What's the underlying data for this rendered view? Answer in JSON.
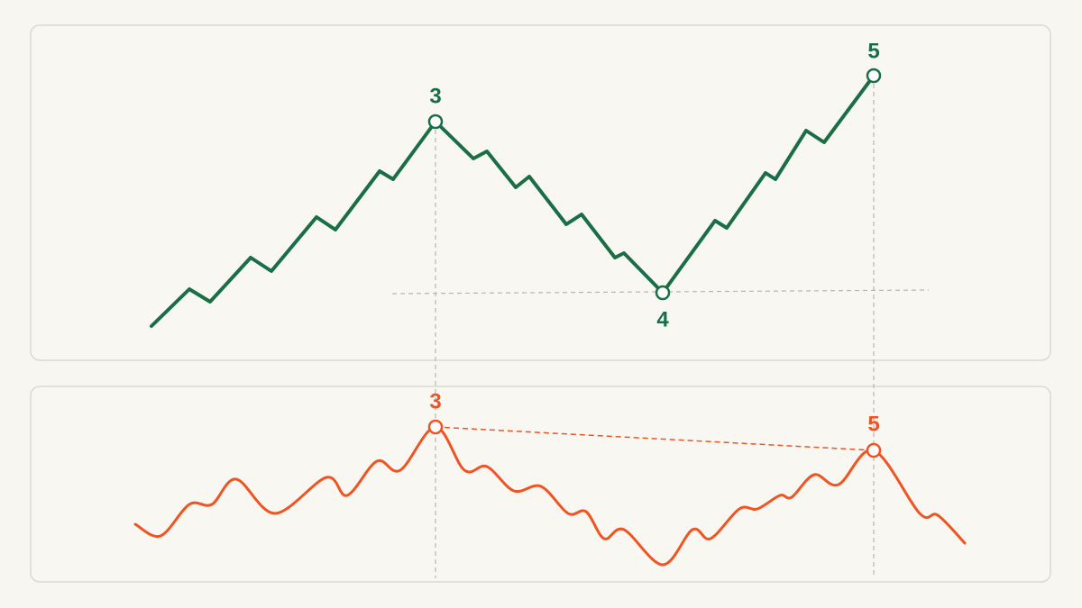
{
  "price_panel": {
    "labels": [
      "3",
      "4",
      "5"
    ]
  },
  "oscillator_panel": {
    "labels": [
      "3",
      "5"
    ]
  }
}
